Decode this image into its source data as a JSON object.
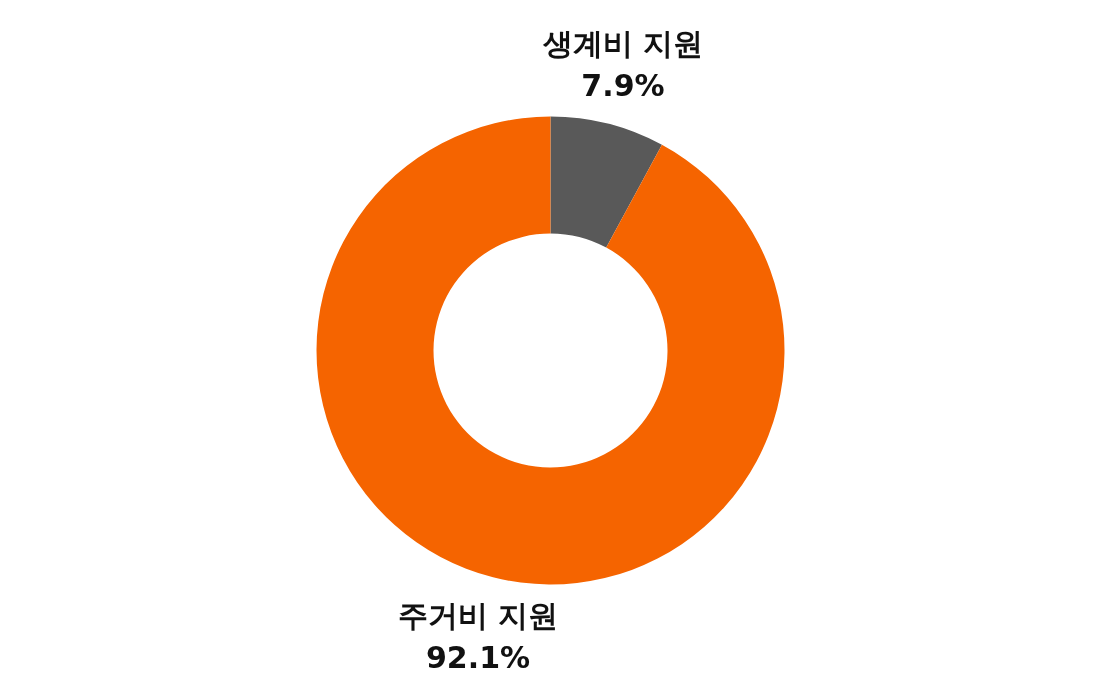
{
  "chart_data": {
    "type": "donut",
    "categories": [
      "생계비 지원",
      "주거비 지원"
    ],
    "values": [
      7.9,
      92.1
    ],
    "value_labels": [
      "7.9%",
      "92.1%"
    ],
    "colors": [
      "#595959",
      "#f56400"
    ]
  }
}
